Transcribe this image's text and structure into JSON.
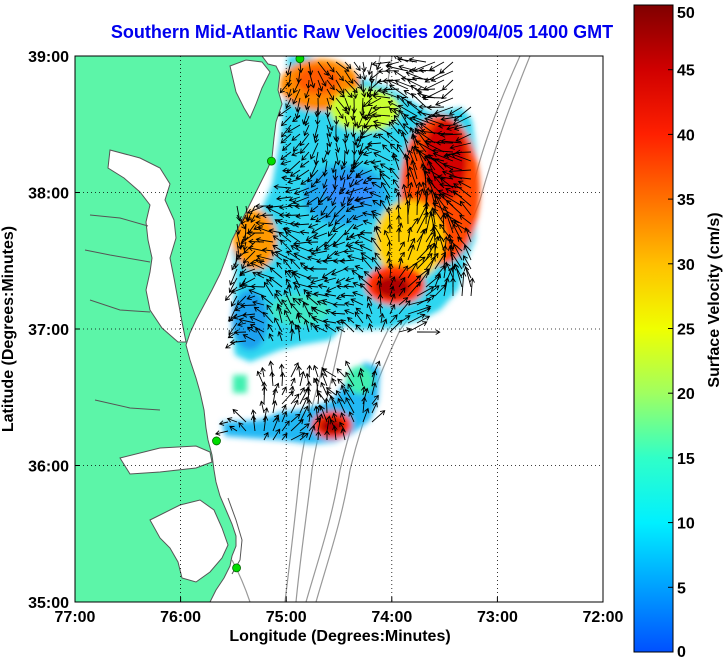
{
  "title": "Southern Mid-Atlantic Raw Velocities 2009/04/05 1400 GMT",
  "colors": {
    "title": "#0000ee",
    "land": "#5cf5a8",
    "ocean": "#ffffff",
    "coast": "#555555",
    "bathymetry": "#999999",
    "grid": "#000000",
    "station": "#00dd00",
    "arrow": "#000000"
  },
  "map": {
    "xlabel": "Longitude (Degrees:Minutes)",
    "ylabel": "Latitude (Degrees:Minutes)",
    "lon_range": [
      -77,
      -72
    ],
    "lat_range": [
      35,
      39
    ],
    "lon_ticks": [
      {
        "value": -77,
        "label": "77:00"
      },
      {
        "value": -76,
        "label": "76:00"
      },
      {
        "value": -75,
        "label": "75:00"
      },
      {
        "value": -74,
        "label": "74:00"
      },
      {
        "value": -73,
        "label": "73:00"
      },
      {
        "value": -72,
        "label": "72:00"
      }
    ],
    "lat_ticks": [
      {
        "value": 39,
        "label": "39:00"
      },
      {
        "value": 38,
        "label": "38:00"
      },
      {
        "value": 37,
        "label": "37:00"
      },
      {
        "value": 36,
        "label": "36:00"
      },
      {
        "value": 35,
        "label": "35:00"
      }
    ],
    "grid": "dotted",
    "stations": [
      {
        "lon": -74.87,
        "lat": 38.98
      },
      {
        "lon": -75.14,
        "lat": 38.23
      },
      {
        "lon": -75.66,
        "lat": 36.18
      },
      {
        "lon": -75.47,
        "lat": 35.25
      }
    ]
  },
  "colorbar": {
    "label": "Surface Velocity (cm/s)",
    "min": 0,
    "max": 50,
    "ticks": [
      {
        "value": 50,
        "label": "50"
      },
      {
        "value": 45,
        "label": "45"
      },
      {
        "value": 40,
        "label": "40"
      },
      {
        "value": 35,
        "label": "35"
      },
      {
        "value": 30,
        "label": "30"
      },
      {
        "value": 25,
        "label": "25"
      },
      {
        "value": 20,
        "label": "20"
      },
      {
        "value": 15,
        "label": "15"
      },
      {
        "value": 10,
        "label": "10"
      },
      {
        "value": 5,
        "label": "5"
      },
      {
        "value": 0,
        "label": "0"
      }
    ],
    "stops": [
      "#0050ff",
      "#00a0ff",
      "#00f0ff",
      "#30ffc8",
      "#a0ff60",
      "#f0ff00",
      "#ffc000",
      "#ff7000",
      "#ff2000",
      "#d00000",
      "#800000"
    ]
  }
}
